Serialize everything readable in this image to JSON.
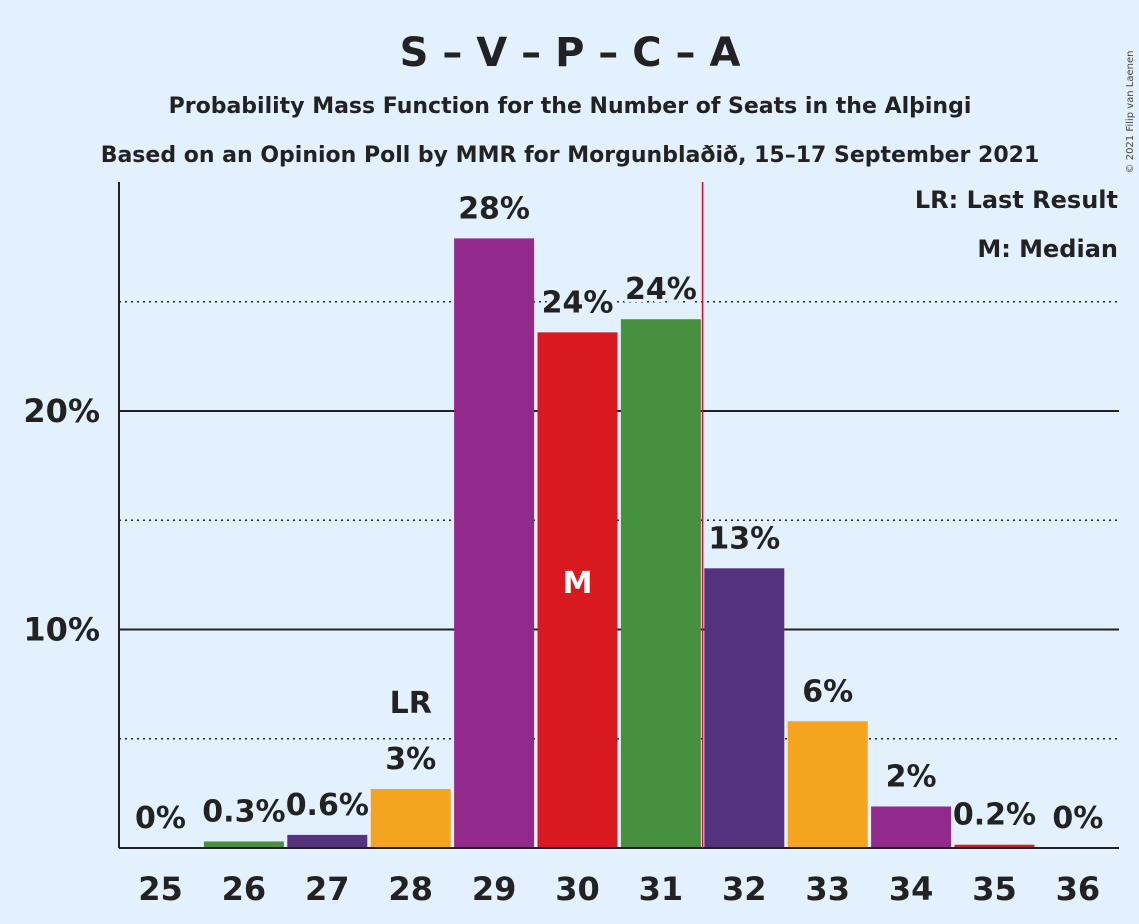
{
  "chart_data": {
    "type": "bar",
    "title": "S – V – P – C – A",
    "subtitle1": "Probability Mass Function for the Number of Seats in the Alþingi",
    "subtitle2": "Based on an Opinion Poll by MMR for Morgunblaðið, 15–17 September 2021",
    "categories": [
      "25",
      "26",
      "27",
      "28",
      "29",
      "30",
      "31",
      "32",
      "33",
      "34",
      "35",
      "36"
    ],
    "values": [
      0,
      0.3,
      0.6,
      2.7,
      27.9,
      23.6,
      24.2,
      12.8,
      5.8,
      1.9,
      0.15,
      0
    ],
    "data_labels": [
      "0%",
      "0.3%",
      "0.6%",
      "3%",
      "28%",
      "24%",
      "24%",
      "13%",
      "6%",
      "2%",
      "0.2%",
      "0%"
    ],
    "bar_colors": [
      "#922a8b",
      "#46903f",
      "#55327d",
      "#f4a41f",
      "#922a8b",
      "#d8191f",
      "#46903f",
      "#55327d",
      "#f4a41f",
      "#922a8b",
      "#d8191f",
      "#46903f"
    ],
    "y_ticks": [
      10,
      20
    ],
    "y_tick_labels": [
      "10%",
      "20%"
    ],
    "minor_gridlines": [
      5,
      15,
      25
    ],
    "ylim": [
      0,
      30
    ],
    "last_result": {
      "category": "28",
      "label": "LR"
    },
    "median": {
      "category": "30",
      "label": "M"
    },
    "majority_line_after": "31",
    "majority_line_color": "#c8102e",
    "legend": [
      "LR: Last Result",
      "M: Median"
    ],
    "legend_position": "top-right",
    "xlabel": "",
    "ylabel": ""
  },
  "copyright": "© 2021 Filip van Laenen"
}
